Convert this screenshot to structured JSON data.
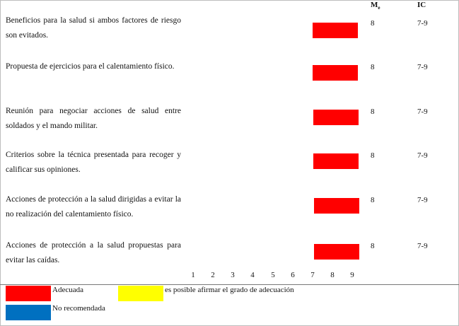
{
  "header": {
    "me_label": "M",
    "me_sub": "e",
    "ic_label": "IC"
  },
  "colors": {
    "adecuada": "#ff0000",
    "posible": "#ffff00",
    "no_recomendada": "#0070c0"
  },
  "items": [
    {
      "text": "Beneficios para la salud si ambos factores de riesgo son evitados.",
      "value": 8,
      "me": "8",
      "ic": "7-9"
    },
    {
      "text": "Propuesta de ejercicios para el calentamiento físico.",
      "value": 8,
      "me": "8",
      "ic": "7-9"
    },
    {
      "text": "Reunión para negociar acciones de salud entre soldados y el mando militar.",
      "value": 8,
      "me": "8",
      "ic": "7-9"
    },
    {
      "text": "Criterios sobre la técnica presentada para recoger y calificar sus opiniones.",
      "value": 8,
      "me": "8",
      "ic": "7-9"
    },
    {
      "text": "Acciones de protección a la salud dirigidas a evitar la no realización del calentamiento físico.",
      "value": 8,
      "me": "8",
      "ic": "7-9"
    },
    {
      "text": "Acciones de protección a la salud propuestas para evitar las caídas.",
      "value": 8,
      "me": "8",
      "ic": "7-9"
    }
  ],
  "scale": [
    "1",
    "2",
    "3",
    "4",
    "5",
    "6",
    "7",
    "8",
    "9"
  ],
  "legend": {
    "adecuada": "Adecuada",
    "posible": "es posible afirmar el grado de adecuación",
    "no_recomendada": "No recomendada"
  }
}
